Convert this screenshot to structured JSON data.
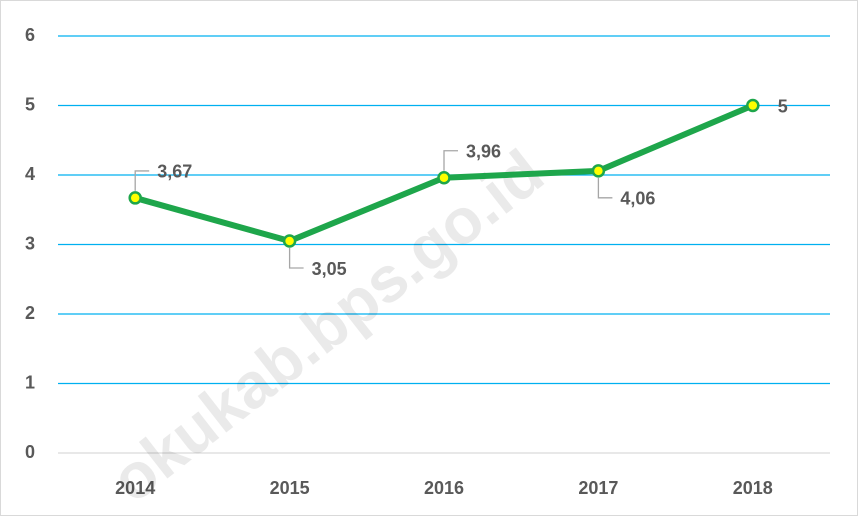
{
  "chart_data": {
    "type": "line",
    "categories": [
      "2014",
      "2015",
      "2016",
      "2017",
      "2018"
    ],
    "series": [
      {
        "name": null,
        "color": "#1ea64b",
        "marker_fill": "#ffff00",
        "values": [
          3.67,
          3.05,
          3.96,
          4.06,
          5
        ],
        "value_labels": [
          "3,67",
          "3,05",
          "3,96",
          "4,06",
          "5"
        ]
      }
    ],
    "ylim": [
      0,
      6
    ],
    "yticks": [
      0,
      1,
      2,
      3,
      4,
      5,
      6
    ],
    "grid": true,
    "grid_color": "#00b0f0",
    "watermark": "okukab.bps.go.id"
  }
}
